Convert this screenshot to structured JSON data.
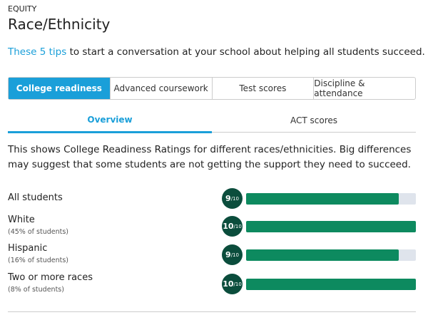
{
  "header": {
    "eyebrow": "EQUITY",
    "title": "Race/Ethnicity"
  },
  "tips": {
    "link": "These 5 tips",
    "text": "to start a conversation at your school about helping all students succeed."
  },
  "tabs": {
    "items": [
      "College readiness",
      "Advanced coursework",
      "Test scores",
      "Discipline & attendance"
    ],
    "active": 0
  },
  "subtabs": {
    "items": [
      "Overview",
      "ACT scores"
    ],
    "active": 0
  },
  "description": "This shows College Readiness Ratings for different races/ethnicities. Big differences may suggest that some students are not getting the support they need to succeed.",
  "ratings": {
    "scale_max": 10,
    "scale_label": "/10",
    "rows": [
      {
        "label": "All students",
        "rating": 9
      },
      {
        "label": "White",
        "note": "(45% of students)",
        "rating": 10
      },
      {
        "label": "Hispanic",
        "note": "(16% of students)",
        "rating": 9
      },
      {
        "label": "Two or more races",
        "note": "(8% of students)",
        "rating": 10
      }
    ]
  }
}
